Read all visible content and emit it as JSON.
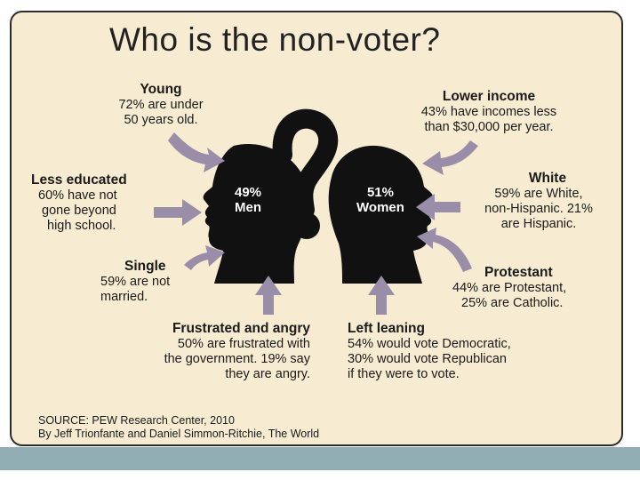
{
  "title": "Who is the non-voter?",
  "heads": {
    "men": {
      "pct": "49%",
      "label": "Men"
    },
    "women": {
      "pct": "51%",
      "label": "Women"
    }
  },
  "factors": {
    "young": {
      "heading": "Young",
      "lines": [
        "72% are under",
        "50 years old."
      ]
    },
    "less_educated": {
      "heading": "Less educated",
      "lines": [
        "60% have not",
        "gone beyond",
        "high school."
      ]
    },
    "single": {
      "heading": "Single",
      "lines": [
        "59% are not",
        "married."
      ]
    },
    "frustrated": {
      "heading": "Frustrated and angry",
      "lines": [
        "50% are frustrated with",
        "the government. 19% say",
        "they are angry."
      ]
    },
    "lower_income": {
      "heading": "Lower income",
      "lines": [
        "43% have incomes less",
        "than $30,000 per year."
      ]
    },
    "white": {
      "heading": "White",
      "lines": [
        "59% are White,",
        "non-Hispanic. 21%",
        "are Hispanic."
      ]
    },
    "protestant": {
      "heading": "Protestant",
      "lines": [
        "44% are Protestant,",
        "25% are Catholic."
      ]
    },
    "left_leaning": {
      "heading": "Left leaning",
      "lines": [
        "54% would vote Democratic,",
        "30% would vote Republican",
        "if they were to vote."
      ]
    }
  },
  "source": {
    "line1": "SOURCE: PEW Research Center, 2010",
    "line2": "By Jeff Trionfante and Daniel Simmon-Ritchie, The World"
  },
  "colors": {
    "panel_bg": "#f7ecd2",
    "arrow": "#9a8da8",
    "silhouette": "#111111",
    "slide_bar": "#8fadb3"
  }
}
